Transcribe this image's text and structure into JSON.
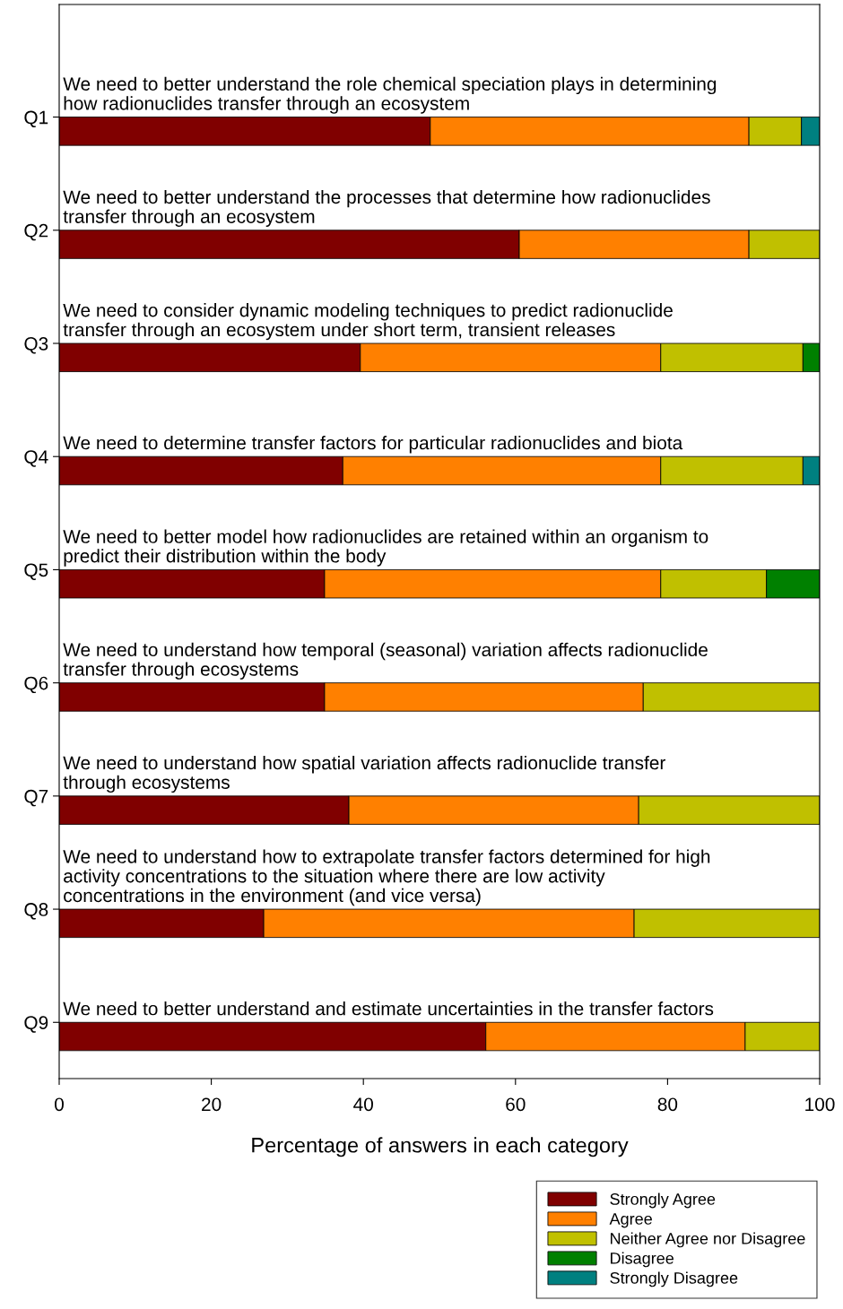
{
  "chart_data": {
    "type": "bar",
    "orientation": "horizontal",
    "stacked": true,
    "categories": [
      "Q1",
      "Q2",
      "Q3",
      "Q4",
      "Q5",
      "Q6",
      "Q7",
      "Q8",
      "Q9"
    ],
    "series": [
      {
        "name": "Strongly Agree",
        "color": "#800000",
        "values": [
          48.8,
          60.5,
          39.6,
          37.3,
          34.9,
          34.9,
          38.1,
          26.9,
          56.1
        ]
      },
      {
        "name": "Agree",
        "color": "#ff8000",
        "values": [
          41.9,
          30.2,
          39.5,
          41.8,
          44.2,
          41.9,
          38.1,
          48.7,
          34.1
        ]
      },
      {
        "name": "Neither Agree nor Disagree",
        "color": "#c0c000",
        "values": [
          6.9,
          9.3,
          18.7,
          18.7,
          13.9,
          23.2,
          23.8,
          24.4,
          9.8
        ]
      },
      {
        "name": "Disagree",
        "color": "#008000",
        "values": [
          null,
          null,
          2.2,
          null,
          7.0,
          null,
          null,
          null,
          null
        ]
      },
      {
        "name": "Strongly Disagree",
        "color": "#008080",
        "values": [
          2.4,
          null,
          null,
          2.2,
          null,
          null,
          null,
          null,
          null
        ]
      }
    ],
    "xlabel": "Percentage of answers in each category",
    "xlim": [
      0,
      100
    ],
    "xticks": [
      0,
      20,
      40,
      60,
      80,
      100
    ],
    "legend": "bottom right",
    "grid": false,
    "annotations": [
      {
        "text": "We need to better understand the role chemical speciation plays in determining\nhow radionuclides transfer through an ecosystem",
        "y": "Q1"
      },
      {
        "text": "We need to better understand the processes that determine how radionuclides\ntransfer through an ecosystem",
        "y": "Q2"
      },
      {
        "text": "We need to consider dynamic modeling techniques to predict radionuclide\ntransfer through an ecosystem under short term, transient releases",
        "y": "Q3"
      },
      {
        "text": "We need to determine transfer factors for particular radionuclides and biota",
        "y": "Q4"
      },
      {
        "text": "We need to better model how radionuclides are retained within an organism to\npredict their distribution within the body",
        "y": "Q5"
      },
      {
        "text": "We need to understand how temporal (seasonal) variation affects radionuclide\ntransfer through ecosystems",
        "y": "Q6"
      },
      {
        "text": "We need to understand how spatial variation affects radionuclide transfer\nthrough ecosystems",
        "y": "Q7"
      },
      {
        "text": "We need to understand how to extrapolate transfer factors determined for high\nactivity concentrations to the situation where there are low activity\nconcentrations in the environment (and vice versa)",
        "y": "Q8"
      },
      {
        "text": "We need to better understand and estimate uncertainties in the transfer factors",
        "y": "Q9"
      }
    ]
  }
}
